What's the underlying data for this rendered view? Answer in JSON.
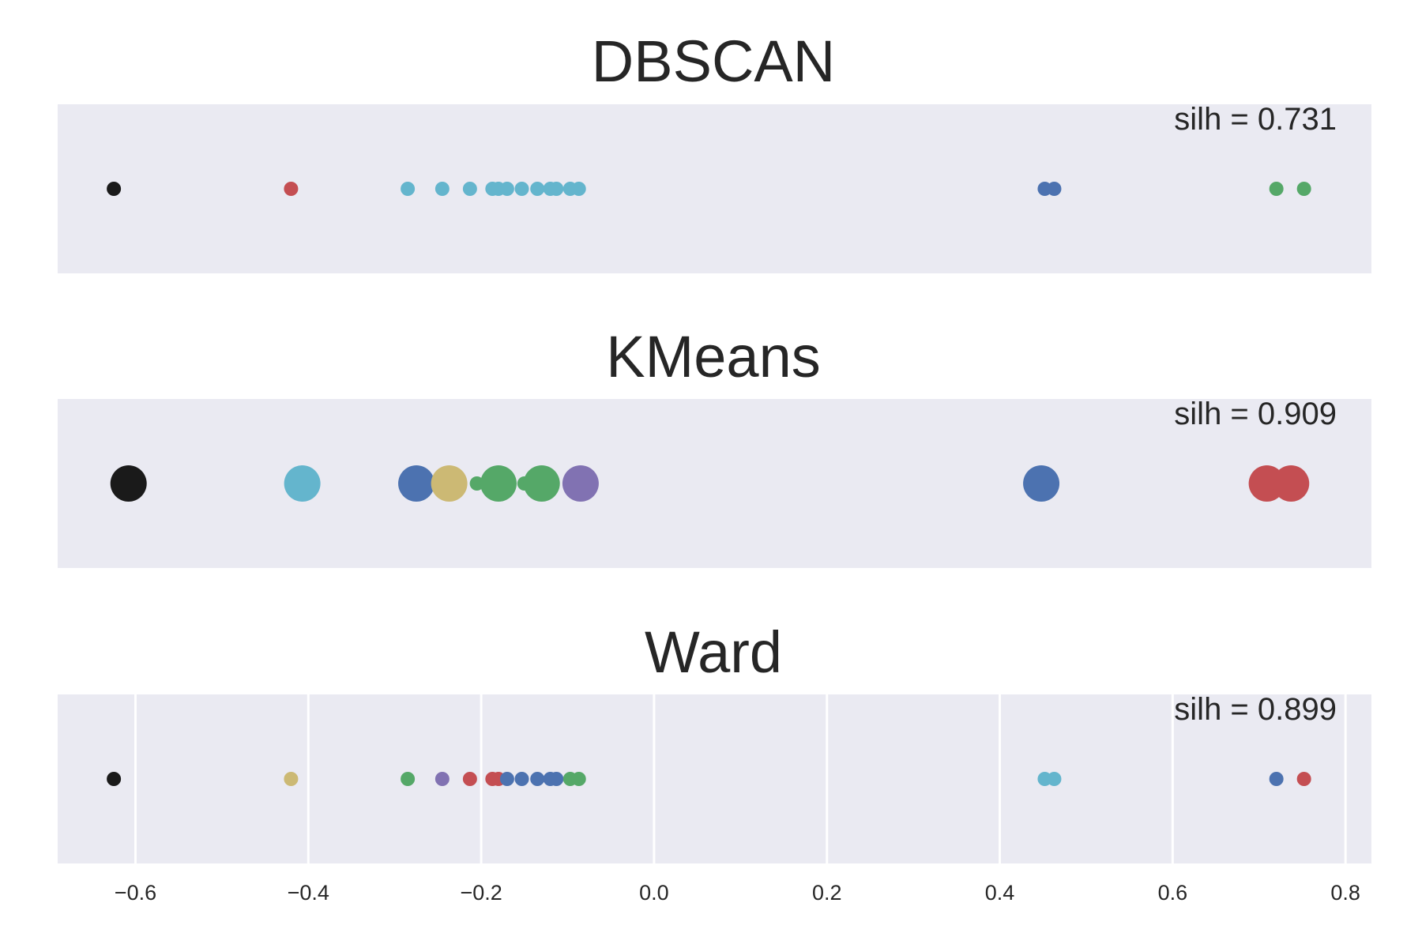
{
  "chart_data": [
    {
      "type": "scatter",
      "title": "DBSCAN",
      "annotation": "silh = 0.731",
      "grid": false,
      "xlim": [
        -0.69,
        0.83
      ],
      "marker_size": "small",
      "points": [
        {
          "x": -0.625,
          "color": "#1a1a1a"
        },
        {
          "x": -0.42,
          "color": "#c44e52"
        },
        {
          "x": -0.285,
          "color": "#64b5cd"
        },
        {
          "x": -0.245,
          "color": "#64b5cd"
        },
        {
          "x": -0.213,
          "color": "#64b5cd"
        },
        {
          "x": -0.187,
          "color": "#64b5cd"
        },
        {
          "x": -0.18,
          "color": "#64b5cd"
        },
        {
          "x": -0.17,
          "color": "#64b5cd"
        },
        {
          "x": -0.153,
          "color": "#64b5cd"
        },
        {
          "x": -0.135,
          "color": "#64b5cd"
        },
        {
          "x": -0.12,
          "color": "#64b5cd"
        },
        {
          "x": -0.113,
          "color": "#64b5cd"
        },
        {
          "x": -0.097,
          "color": "#64b5cd"
        },
        {
          "x": -0.087,
          "color": "#64b5cd"
        },
        {
          "x": 0.452,
          "color": "#4c72b0"
        },
        {
          "x": 0.463,
          "color": "#4c72b0"
        },
        {
          "x": 0.72,
          "color": "#55a868"
        },
        {
          "x": 0.752,
          "color": "#55a868"
        }
      ]
    },
    {
      "type": "scatter",
      "title": "KMeans",
      "annotation": "silh = 0.909",
      "grid": false,
      "xlim": [
        -0.69,
        0.83
      ],
      "marker_size": "large",
      "points": [
        {
          "x": -0.608,
          "color": "#1a1a1a",
          "size": "large"
        },
        {
          "x": -0.407,
          "color": "#64b5cd",
          "size": "large"
        },
        {
          "x": -0.275,
          "color": "#4c72b0",
          "size": "large"
        },
        {
          "x": -0.237,
          "color": "#ccb974",
          "size": "large"
        },
        {
          "x": -0.205,
          "color": "#55a868",
          "size": "small"
        },
        {
          "x": -0.18,
          "color": "#55a868",
          "size": "large"
        },
        {
          "x": -0.15,
          "color": "#55a868",
          "size": "small"
        },
        {
          "x": -0.13,
          "color": "#55a868",
          "size": "large"
        },
        {
          "x": -0.085,
          "color": "#8172b2",
          "size": "large"
        },
        {
          "x": 0.448,
          "color": "#4c72b0",
          "size": "large"
        },
        {
          "x": 0.709,
          "color": "#c44e52",
          "size": "large"
        },
        {
          "x": 0.737,
          "color": "#c44e52",
          "size": "large"
        }
      ]
    },
    {
      "type": "scatter",
      "title": "Ward",
      "annotation": "silh = 0.899",
      "grid": true,
      "xlim": [
        -0.69,
        0.83
      ],
      "marker_size": "small",
      "x_ticks": [
        -0.6,
        -0.4,
        -0.2,
        0.0,
        0.2,
        0.4,
        0.6,
        0.8
      ],
      "x_tick_labels": [
        "−0.6",
        "−0.4",
        "−0.2",
        "0.0",
        "0.2",
        "0.4",
        "0.6",
        "0.8"
      ],
      "points": [
        {
          "x": -0.625,
          "color": "#1a1a1a"
        },
        {
          "x": -0.42,
          "color": "#ccb974"
        },
        {
          "x": -0.285,
          "color": "#55a868"
        },
        {
          "x": -0.245,
          "color": "#8172b2"
        },
        {
          "x": -0.213,
          "color": "#c44e52"
        },
        {
          "x": -0.187,
          "color": "#c44e52"
        },
        {
          "x": -0.18,
          "color": "#c44e52"
        },
        {
          "x": -0.17,
          "color": "#4c72b0"
        },
        {
          "x": -0.153,
          "color": "#4c72b0"
        },
        {
          "x": -0.135,
          "color": "#4c72b0"
        },
        {
          "x": -0.12,
          "color": "#4c72b0"
        },
        {
          "x": -0.113,
          "color": "#4c72b0"
        },
        {
          "x": -0.097,
          "color": "#55a868"
        },
        {
          "x": -0.087,
          "color": "#55a868"
        },
        {
          "x": 0.452,
          "color": "#64b5cd"
        },
        {
          "x": 0.463,
          "color": "#64b5cd"
        },
        {
          "x": 0.72,
          "color": "#4c72b0"
        },
        {
          "x": 0.752,
          "color": "#c44e52"
        }
      ]
    }
  ],
  "style": {
    "panel_background": "#eaeaf2",
    "grid_color": "#ffffff",
    "text_color": "#262626"
  }
}
